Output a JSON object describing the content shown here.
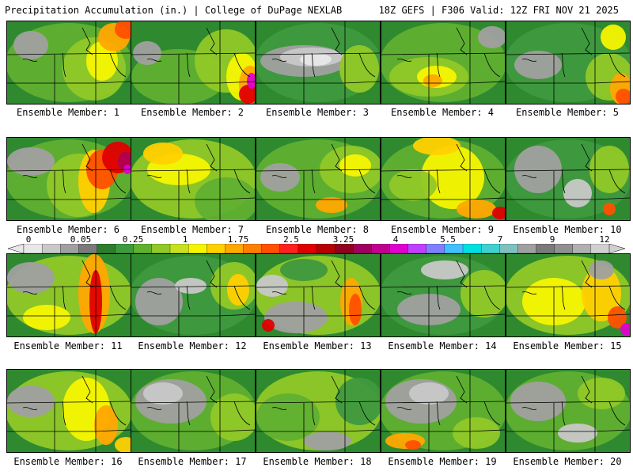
{
  "header": {
    "title_left": "Precipitation Accumulation (in.) | College of DuPage NEXLAB",
    "title_right": "18Z GEFS | F306 Valid: 12Z FRI NOV 21 2025"
  },
  "members": [
    {
      "label": "Ensemble Member: 1"
    },
    {
      "label": "Ensemble Member: 2"
    },
    {
      "label": "Ensemble Member: 3"
    },
    {
      "label": "Ensemble Member: 4"
    },
    {
      "label": "Ensemble Member: 5"
    },
    {
      "label": "Ensemble Member: 6"
    },
    {
      "label": "Ensemble Member: 7"
    },
    {
      "label": "Ensemble Member: 8"
    },
    {
      "label": "Ensemble Member: 9"
    },
    {
      "label": "Ensemble Member: 10"
    },
    {
      "label": "Ensemble Member: 11"
    },
    {
      "label": "Ensemble Member: 12"
    },
    {
      "label": "Ensemble Member: 13"
    },
    {
      "label": "Ensemble Member: 14"
    },
    {
      "label": "Ensemble Member: 15"
    },
    {
      "label": "Ensemble Member: 16"
    },
    {
      "label": "Ensemble Member: 17"
    },
    {
      "label": "Ensemble Member: 18"
    },
    {
      "label": "Ensemble Member: 19"
    },
    {
      "label": "Ensemble Member: 20"
    }
  ],
  "colorbar": {
    "ticks": [
      "0",
      "0.05",
      "0.25",
      "1",
      "1.75",
      "2.5",
      "3.25",
      "4",
      "5.5",
      "7",
      "9",
      "12"
    ],
    "colors": [
      "#e8e8e8",
      "#c8c8c8",
      "#a0a0a0",
      "#7a7a7a",
      "#2e7d2e",
      "#3f993f",
      "#60b030",
      "#90c828",
      "#c8e020",
      "#f5f500",
      "#ffd000",
      "#ffa800",
      "#ff8000",
      "#ff5000",
      "#ff2020",
      "#e00000",
      "#b80000",
      "#900020",
      "#a00060",
      "#c00090",
      "#e000d0",
      "#c040ff",
      "#8080ff",
      "#40c0ff",
      "#00e0e0",
      "#40d0d0",
      "#80c0c0",
      "#a0a0a0",
      "#7a7a7a",
      "#909090",
      "#b0b0b0",
      "#d0d0d0"
    ]
  }
}
